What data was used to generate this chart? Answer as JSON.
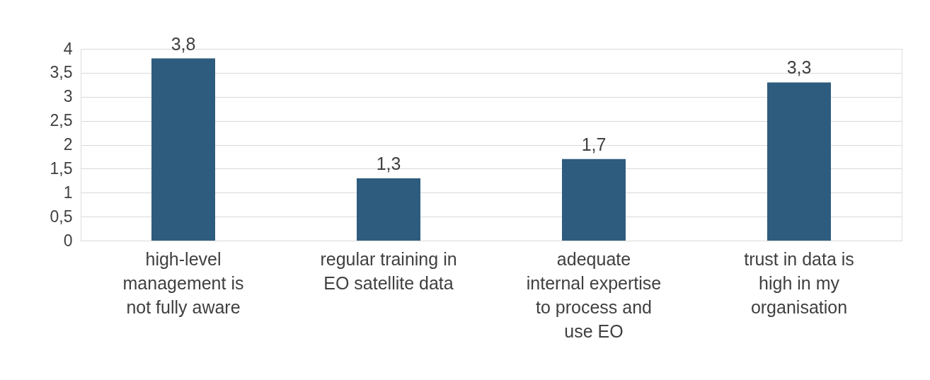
{
  "chart_data": {
    "type": "bar",
    "categories": [
      "high-level management is not fully aware",
      "regular training in EO satellite data",
      "adequate internal expertise to process and use EO",
      "trust in data is high in my organisation"
    ],
    "values": [
      3.8,
      1.3,
      1.7,
      3.3
    ],
    "value_labels": [
      "3,8",
      "1,3",
      "1,7",
      "3,3"
    ],
    "color": "#2e5c7e",
    "ylim": [
      0,
      4
    ],
    "yticks": [
      0,
      {
        "value": 0.5,
        "label": "0,5"
      },
      1,
      {
        "value": 1.5,
        "label": "1,5"
      },
      2,
      {
        "value": 2.5,
        "label": "2,5"
      },
      3,
      {
        "value": 3.5,
        "label": "3,5"
      },
      4
    ],
    "grid": "y"
  }
}
